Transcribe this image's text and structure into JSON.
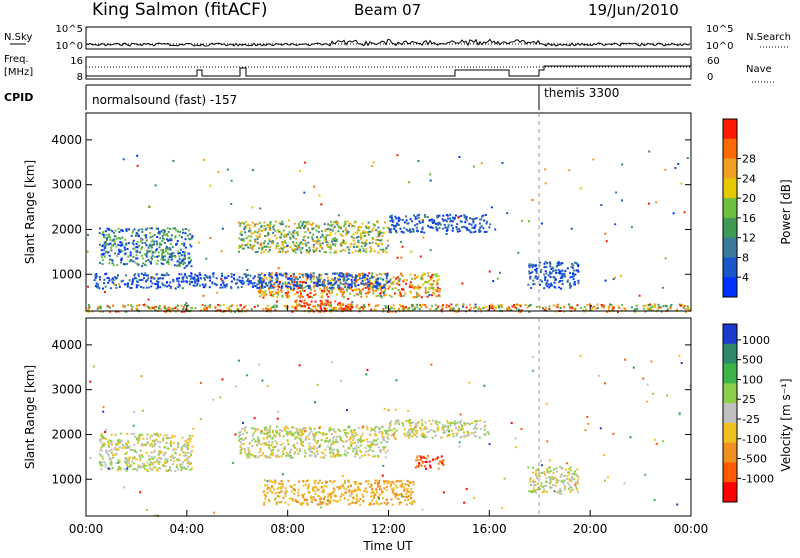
{
  "header": {
    "station": "King Salmon (fitACF)",
    "beam": "Beam 07",
    "date": "19/Jun/2010"
  },
  "noise_panel": {
    "left_label": "N.Sky",
    "left_ticks": [
      "10^5",
      "10^0"
    ],
    "right_label": "N.Search",
    "right_ticks": [
      "10^5",
      "10^0"
    ]
  },
  "freq_panel": {
    "left_label_1": "Freq.",
    "left_label_2": "[MHz]",
    "left_ticks": [
      "16",
      "8"
    ],
    "right_label": "Nave",
    "right_ticks": [
      "60",
      "0"
    ]
  },
  "cpid_panel": {
    "label": "CPID",
    "mode_1": "normalsound (fast) -157",
    "mode_2": "themis 3300",
    "mode_change_hour": 18
  },
  "chart_data": [
    {
      "type": "heatmap",
      "name": "power",
      "ylabel": "Slant Range [km]",
      "yticks": [
        1000,
        2000,
        3000,
        4000
      ],
      "ylim": [
        180,
        4600
      ],
      "xlim": [
        0,
        24
      ],
      "colorbar": {
        "label": "Power [dB]",
        "ticks": [
          4,
          8,
          12,
          16,
          20,
          24,
          28
        ],
        "colors": [
          "#0033ff",
          "#1a55cc",
          "#3a7a9a",
          "#3f9a55",
          "#6cc040",
          "#e8c800",
          "#f0a020",
          "#ff6a00",
          "#ff1a00"
        ]
      },
      "regions": [
        {
          "x": [
            0.5,
            4.2
          ],
          "range": [
            1200,
            2050
          ],
          "level": "low-mid"
        },
        {
          "x": [
            6.0,
            12.0
          ],
          "range": [
            1500,
            2200
          ],
          "level": "mid"
        },
        {
          "x": [
            12.0,
            16.0
          ],
          "range": [
            1950,
            2350
          ],
          "level": "low"
        },
        {
          "x": [
            6.8,
            14.0
          ],
          "range": [
            500,
            1050
          ],
          "level": "high"
        },
        {
          "x": [
            8.2,
            10.5
          ],
          "range": [
            180,
            450
          ],
          "level": "very-high"
        },
        {
          "x": [
            0.3,
            12.0
          ],
          "range": [
            700,
            1050
          ],
          "level": "low"
        },
        {
          "x": [
            17.5,
            19.5
          ],
          "range": [
            700,
            1300
          ],
          "level": "low"
        },
        {
          "x": [
            0.0,
            24.0
          ],
          "range": [
            180,
            350
          ],
          "level": "ground-scatter"
        }
      ]
    },
    {
      "type": "heatmap",
      "name": "velocity",
      "ylabel": "Slant Range [km]",
      "yticks": [
        1000,
        2000,
        3000,
        4000
      ],
      "ylim": [
        180,
        4600
      ],
      "xlim": [
        0,
        24
      ],
      "colorbar": {
        "label": "Velocity [m s⁻¹]",
        "ticks": [
          1000,
          500,
          100,
          25,
          -25,
          -100,
          -500,
          -1000
        ],
        "colors": [
          "#1a3ad0",
          "#2f8a6a",
          "#3cb44a",
          "#8ad04a",
          "#c0c0c0",
          "#f0c020",
          "#f09020",
          "#ff5a00",
          "#ff0000"
        ]
      },
      "regions": [
        {
          "x": [
            0.5,
            4.2
          ],
          "range": [
            1200,
            2050
          ],
          "level": "near-zero"
        },
        {
          "x": [
            6.0,
            12.0
          ],
          "range": [
            1500,
            2200
          ],
          "level": "near-zero"
        },
        {
          "x": [
            12.0,
            16.0
          ],
          "range": [
            1950,
            2350
          ],
          "level": "near-zero"
        },
        {
          "x": [
            7.0,
            13.0
          ],
          "range": [
            450,
            1000
          ],
          "level": "negative"
        },
        {
          "x": [
            13.0,
            14.2
          ],
          "range": [
            1250,
            1550
          ],
          "level": "strong-negative"
        },
        {
          "x": [
            17.5,
            19.5
          ],
          "range": [
            700,
            1300
          ],
          "level": "near-zero"
        }
      ]
    }
  ],
  "x_axis": {
    "ticks": [
      "00:00",
      "04:00",
      "08:00",
      "12:00",
      "16:00",
      "20:00",
      "00:00"
    ],
    "label": "Time UT"
  }
}
